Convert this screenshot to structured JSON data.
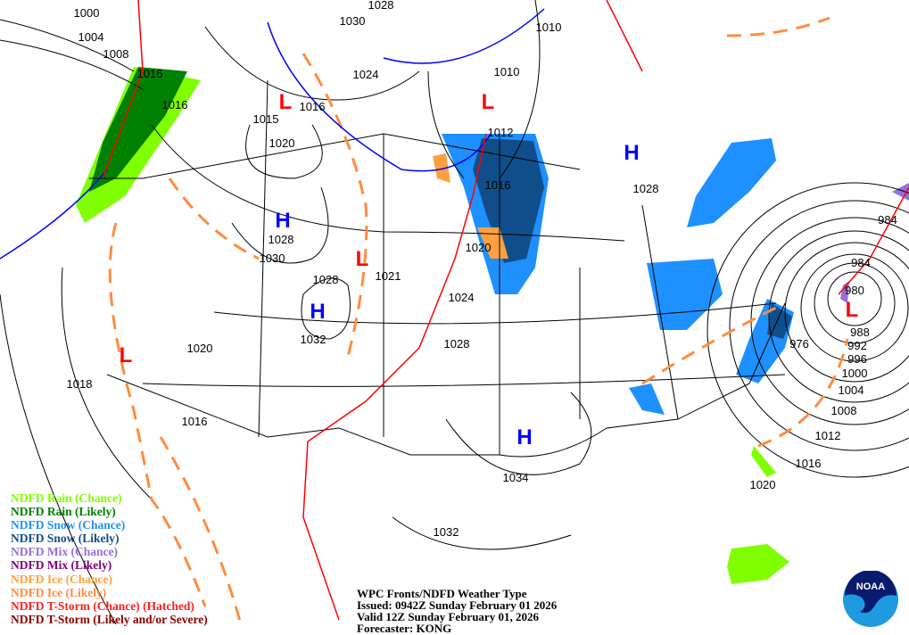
{
  "title": "WPC Fronts/NDFD Weather Type",
  "issued": "Issued: 0942Z Sunday February 01 2026",
  "valid": "Valid 12Z Sunday February 01, 2026",
  "forecaster": "Forecaster: KONG",
  "logo_text": "NOAA",
  "legend": [
    {
      "label": "NDFD Rain (Chance)",
      "color": "#80ff00"
    },
    {
      "label": "NDFD Rain (Likely)",
      "color": "#008000"
    },
    {
      "label": "NDFD Snow (Chance)",
      "color": "#1e90ff"
    },
    {
      "label": "NDFD Snow (Likely)",
      "color": "#104e8b"
    },
    {
      "label": "NDFD Mix (Chance)",
      "color": "#9370db"
    },
    {
      "label": "NDFD Mix (Likely)",
      "color": "#800080"
    },
    {
      "label": "NDFD Ice (Chance)",
      "color": "#ffa040"
    },
    {
      "label": "NDFD Ice (Likely)",
      "color": "#ff8c40"
    },
    {
      "label": "NDFD T-Storm (Chance) (Hatched)",
      "color": "#ff2020"
    },
    {
      "label": "NDFD T-Storm (Likely and/or Severe)",
      "color": "#8b0000"
    }
  ],
  "isobar_labels": [
    "1000",
    "1004",
    "1008",
    "1016",
    "1016",
    "1015",
    "1016",
    "1020",
    "1028",
    "1030",
    "1028",
    "1032",
    "1021",
    "1024",
    "1028",
    "1020",
    "1016",
    "1012",
    "1010",
    "1010",
    "1024",
    "1030",
    "1028",
    "1028",
    "1020",
    "1018",
    "1016",
    "1034",
    "1032",
    "976",
    "984",
    "984",
    "980",
    "988",
    "992",
    "996",
    "1000",
    "1004",
    "1008",
    "1012",
    "1016",
    "1020"
  ],
  "pressure_centers": [
    {
      "type": "H",
      "color": "#0000ff"
    },
    {
      "type": "H",
      "color": "#0000ff"
    },
    {
      "type": "H",
      "color": "#0000ff"
    },
    {
      "type": "H",
      "color": "#0000ff"
    },
    {
      "type": "L",
      "color": "#ff0000"
    },
    {
      "type": "L",
      "color": "#ff0000"
    },
    {
      "type": "L",
      "color": "#ff0000"
    },
    {
      "type": "L",
      "color": "#ff0000"
    },
    {
      "type": "L",
      "color": "#ff0000"
    }
  ]
}
